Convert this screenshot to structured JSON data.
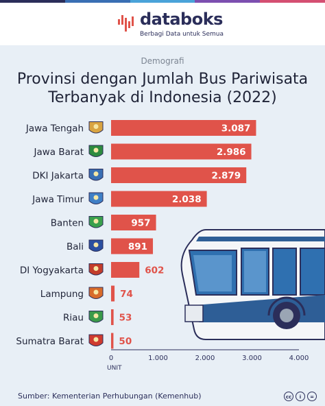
{
  "brand": {
    "name": "databoks",
    "tagline": "Berbagi Data untuk Semua",
    "stripe_colors": [
      "#2b2e5a",
      "#3a6fb4",
      "#4aa3d9",
      "#7c4fb0",
      "#d44f72"
    ]
  },
  "category": "Demografi",
  "title_line1": "Provinsi dengan Jumlah Bus Pariwisata",
  "title_line2": "Terbanyak di Indonesia (2022)",
  "chart_data": {
    "type": "bar",
    "orientation": "horizontal",
    "categories": [
      "Jawa Tengah",
      "Jawa Barat",
      "DKI Jakarta",
      "Jawa Timur",
      "Banten",
      "Bali",
      "DI Yogyakarta",
      "Lampung",
      "Riau",
      "Sumatra Barat"
    ],
    "values": [
      3087,
      2986,
      2879,
      2038,
      957,
      891,
      602,
      74,
      53,
      50
    ],
    "value_labels": [
      "3.087",
      "2.986",
      "2.879",
      "2.038",
      "957",
      "891",
      "602",
      "74",
      "53",
      "50"
    ],
    "xlim": [
      0,
      4000
    ],
    "xticks": [
      0,
      1000,
      2000,
      3000,
      4000
    ],
    "xtick_labels": [
      "0",
      "1.000",
      "2.000",
      "3.000",
      "4.000"
    ],
    "xlabel": "UNIT",
    "bar_color": "#e0534a",
    "grid": false
  },
  "province_icons": [
    "jawa-tengah-emblem-icon",
    "jawa-barat-emblem-icon",
    "dki-jakarta-emblem-icon",
    "jawa-timur-emblem-icon",
    "banten-emblem-icon",
    "bali-emblem-icon",
    "di-yogyakarta-emblem-icon",
    "lampung-emblem-icon",
    "riau-emblem-icon",
    "sumatra-barat-emblem-icon"
  ],
  "source": "Sumber: Kementerian Perhubungan (Kemenhub)",
  "license_icons": [
    "cc-icon",
    "by-icon",
    "equals-icon"
  ],
  "license_labels": [
    "cc",
    "i",
    "="
  ]
}
